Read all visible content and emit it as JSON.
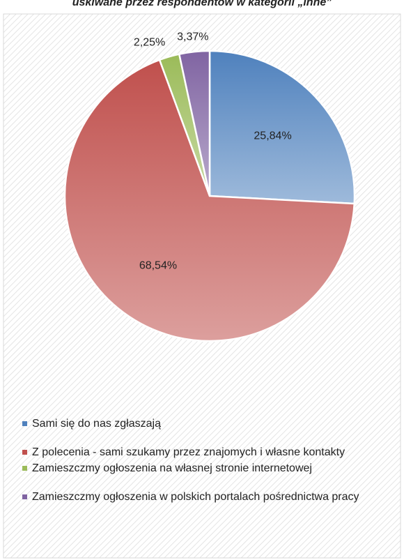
{
  "chart_data": {
    "type": "pie",
    "title": "uskiwane przez respondentów w kategorii „inne”",
    "categories": [
      "Sami się do nas zgłaszają",
      "Z polecenia - sami szukamy przez znajomych i własne kontakty",
      "Zamieszczmy ogłoszenia na własnej stronie internetowej",
      "Zamieszczmy ogłoszenia w polskich portalach pośrednictwa pracy"
    ],
    "values": [
      25.84,
      68.54,
      2.25,
      3.37
    ],
    "value_labels": [
      "25,84%",
      "68,54%",
      "2,25%",
      "3,37%"
    ],
    "colors": [
      "#4f81bd",
      "#c0504d",
      "#9bbb59",
      "#8064a2"
    ],
    "legend": "bottom"
  }
}
